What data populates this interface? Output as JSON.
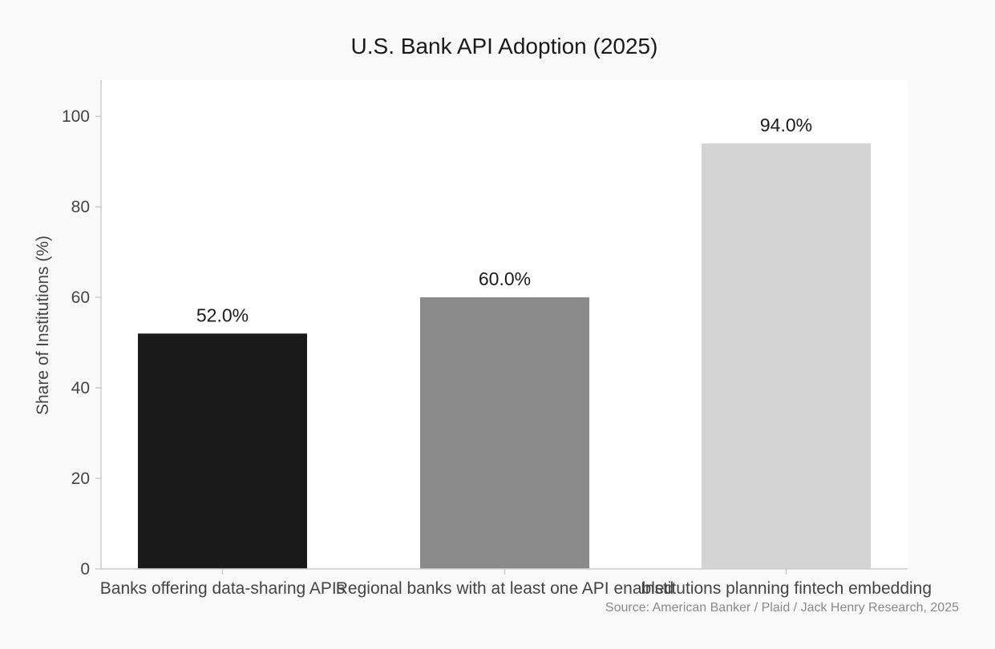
{
  "chart_data": {
    "type": "bar",
    "title": "U.S. Bank API Adoption (2025)",
    "xlabel": "",
    "ylabel": "Share of Institutions (%)",
    "categories": [
      "Banks offering data-sharing APIs",
      "Regional banks with at least one API enabled",
      "Institutions planning fintech embedding"
    ],
    "values": [
      52.0,
      60.0,
      94.0
    ],
    "data_labels": [
      "52.0%",
      "60.0%",
      "94.0%"
    ],
    "bar_colors": [
      "#1a1a1a",
      "#8a8a8a",
      "#d4d4d4"
    ],
    "ylim": [
      0,
      108
    ],
    "yticks": [
      0,
      20,
      40,
      60,
      80,
      100
    ],
    "grid": false,
    "legend": "none",
    "source": "Source: American Banker / Plaid / Jack Henry Research, 2025"
  },
  "colors": {
    "page_background": "#f9f9f9",
    "plot_background": "#ffffff",
    "axis": "#cccccc",
    "text": "#1a1a1a",
    "muted_text": "#444444",
    "source_text": "#8a8a8a"
  }
}
